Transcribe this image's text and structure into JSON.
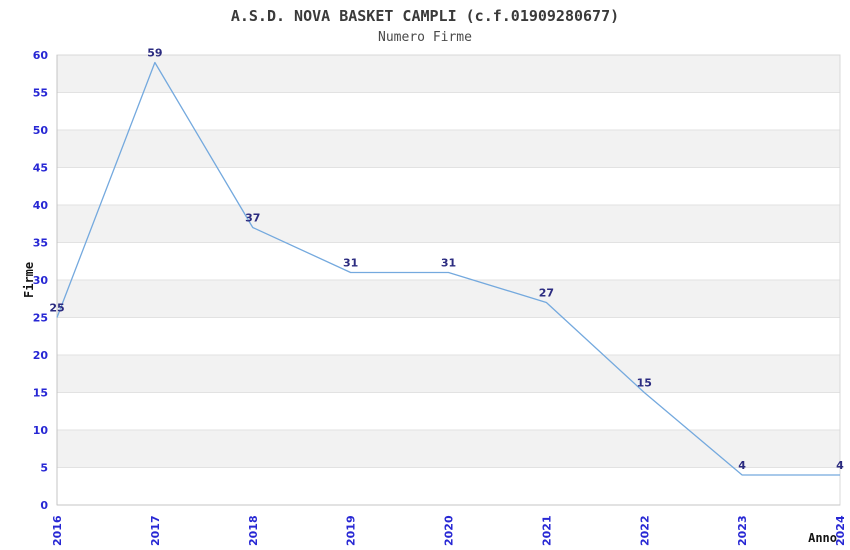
{
  "chart_data": {
    "type": "line",
    "title": "A.S.D. NOVA BASKET CAMPLI (c.f.01909280677)",
    "subtitle": "Numero Firme",
    "xlabel": "Anno",
    "ylabel": "Firme",
    "categories": [
      "2016",
      "2017",
      "2018",
      "2019",
      "2020",
      "2021",
      "2022",
      "2023",
      "2024"
    ],
    "values": [
      25,
      59,
      37,
      31,
      31,
      27,
      15,
      4,
      4
    ],
    "ylim": [
      0,
      60
    ],
    "ytick_step": 5,
    "yticks": [
      0,
      5,
      10,
      15,
      20,
      25,
      30,
      35,
      40,
      45,
      50,
      55,
      60
    ],
    "grid": "horizontal-alternating-bands",
    "legend": "none",
    "point_labels_visible": true,
    "colors": {
      "line": "#74a9de",
      "tick_label": "#2727d4",
      "point_label": "#2b2b80",
      "band": "#f2f2f2",
      "grid": "#e2e2e2",
      "axis": "#c4c4c4",
      "border": "#d8d8d8",
      "title": "#3a3a3a",
      "subtitle": "#4a4a4a",
      "axis_title": "#141414",
      "background": "#ffffff"
    }
  }
}
